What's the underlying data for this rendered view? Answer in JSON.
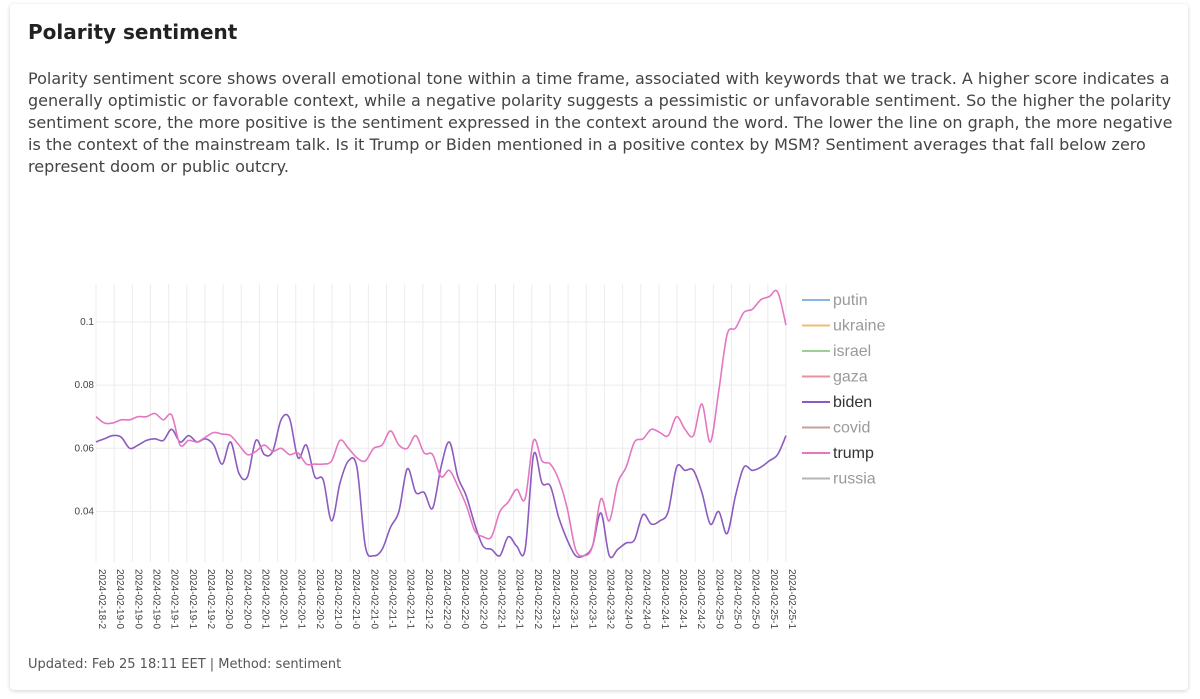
{
  "header": {
    "title": "Polarity sentiment",
    "description": "Polarity sentiment score shows overall emotional tone within a time frame, associated with keywords that we track. A higher score indicates a generally optimistic or favorable context, while a negative polarity suggests a pessimistic or unfavorable sentiment. So the higher the polarity sentiment score, the more positive is the sentiment expressed in the context around the word. The lower the line on graph, the more negative is the context of the mainstream talk. Is it Trump or Biden mentioned in a positive contex by MSM? Sentiment averages that fall below zero represent doom or public outcry."
  },
  "footer": {
    "text": "Updated: Feb 25 18:11 EET | Method: sentiment"
  },
  "chart_data": {
    "type": "line",
    "title": "",
    "xlabel": "",
    "ylabel": "",
    "ylim": [
      0.024,
      0.112
    ],
    "yticks": [
      0.04,
      0.06,
      0.08,
      0.1
    ],
    "yticklabels": [
      "0.04",
      "0.06",
      "0.08",
      "0.1"
    ],
    "grid": true,
    "legend_position": "right",
    "x_tick_labels": [
      "2024-02-18-2",
      "2024-02-19-0",
      "2024-02-19-0",
      "2024-02-19-0",
      "2024-02-19-1",
      "2024-02-19-1",
      "2024-02-19-2",
      "2024-02-20-0",
      "2024-02-20-0",
      "2024-02-20-1",
      "2024-02-20-1",
      "2024-02-20-1",
      "2024-02-20-2",
      "2024-02-21-0",
      "2024-02-21-0",
      "2024-02-21-0",
      "2024-02-21-1",
      "2024-02-21-1",
      "2024-02-21-2",
      "2024-02-22-0",
      "2024-02-22-0",
      "2024-02-22-0",
      "2024-02-22-1",
      "2024-02-22-1",
      "2024-02-22-2",
      "2024-02-23-1",
      "2024-02-23-1",
      "2024-02-23-1",
      "2024-02-23-2",
      "2024-02-24-0",
      "2024-02-24-0",
      "2024-02-24-1",
      "2024-02-24-1",
      "2024-02-24-2",
      "2024-02-25-0",
      "2024-02-25-0",
      "2024-02-25-0",
      "2024-02-25-1",
      "2024-02-25-1"
    ],
    "legend": [
      {
        "name": "putin",
        "color": "#8ab6e0",
        "active": false
      },
      {
        "name": "ukraine",
        "color": "#f5b87a",
        "active": false
      },
      {
        "name": "israel",
        "color": "#9ccf93",
        "active": false
      },
      {
        "name": "gaza",
        "color": "#ef8f96",
        "active": false
      },
      {
        "name": "biden",
        "color": "#8c5bbf",
        "active": true
      },
      {
        "name": "covid",
        "color": "#c7a29c",
        "active": false
      },
      {
        "name": "trump",
        "color": "#e377c2",
        "active": true
      },
      {
        "name": "russia",
        "color": "#b5b5b5",
        "active": false
      }
    ],
    "series": [
      {
        "name": "biden",
        "color": "#8c5bbf",
        "values": [
          0.062,
          0.063,
          0.064,
          0.0635,
          0.06,
          0.061,
          0.0625,
          0.063,
          0.0625,
          0.066,
          0.062,
          0.064,
          0.062,
          0.063,
          0.061,
          0.055,
          0.062,
          0.052,
          0.051,
          0.0625,
          0.058,
          0.059,
          0.069,
          0.0695,
          0.057,
          0.061,
          0.051,
          0.05,
          0.037,
          0.049,
          0.056,
          0.054,
          0.029,
          0.026,
          0.028,
          0.035,
          0.04,
          0.0535,
          0.046,
          0.046,
          0.041,
          0.054,
          0.062,
          0.051,
          0.045,
          0.036,
          0.029,
          0.028,
          0.026,
          0.032,
          0.029,
          0.028,
          0.058,
          0.049,
          0.048,
          0.038,
          0.031,
          0.026,
          0.026,
          0.029,
          0.0395,
          0.026,
          0.028,
          0.03,
          0.031,
          0.039,
          0.036,
          0.037,
          0.04,
          0.054,
          0.053,
          0.053,
          0.046,
          0.036,
          0.04,
          0.033,
          0.045,
          0.054,
          0.053,
          0.054,
          0.056,
          0.058,
          0.064
        ]
      },
      {
        "name": "trump",
        "color": "#e377c2",
        "values": [
          0.07,
          0.068,
          0.068,
          0.069,
          0.069,
          0.07,
          0.07,
          0.071,
          0.069,
          0.0705,
          0.061,
          0.0625,
          0.062,
          0.0635,
          0.065,
          0.0645,
          0.064,
          0.061,
          0.058,
          0.059,
          0.061,
          0.059,
          0.06,
          0.058,
          0.0585,
          0.055,
          0.055,
          0.055,
          0.056,
          0.0625,
          0.06,
          0.057,
          0.056,
          0.06,
          0.061,
          0.0655,
          0.061,
          0.06,
          0.064,
          0.0585,
          0.058,
          0.051,
          0.053,
          0.048,
          0.042,
          0.034,
          0.032,
          0.032,
          0.04,
          0.043,
          0.047,
          0.044,
          0.0625,
          0.056,
          0.055,
          0.05,
          0.041,
          0.028,
          0.026,
          0.029,
          0.044,
          0.037,
          0.049,
          0.054,
          0.062,
          0.063,
          0.066,
          0.065,
          0.064,
          0.07,
          0.066,
          0.064,
          0.074,
          0.062,
          0.078,
          0.096,
          0.098,
          0.103,
          0.104,
          0.107,
          0.108,
          0.1095,
          0.099
        ]
      }
    ]
  }
}
